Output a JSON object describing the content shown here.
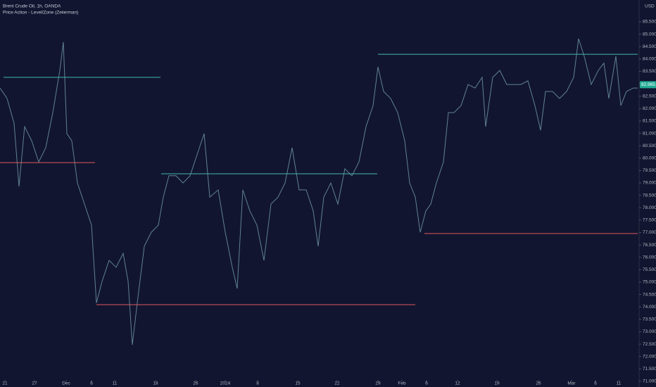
{
  "chart_data": {
    "type": "line",
    "title": "Brent Crude Oil, 1h, OANDA",
    "subtitle": "Price Action - Level/Zone (Zeiierman)",
    "currency": "USD",
    "color": "#5f8391",
    "x": [
      0,
      10,
      20,
      27,
      35,
      45,
      55,
      65,
      75,
      85,
      90,
      95,
      102,
      110,
      120,
      130,
      137,
      145,
      155,
      165,
      175,
      182,
      188,
      195,
      205,
      215,
      225,
      232,
      240,
      250,
      260,
      270,
      280,
      290,
      298,
      310,
      320,
      330,
      337,
      345,
      355,
      365,
      375,
      385,
      395,
      405,
      415,
      425,
      435,
      445,
      452,
      460,
      470,
      480,
      490,
      500,
      510,
      520,
      530,
      537,
      545,
      555,
      565,
      575,
      582,
      590,
      597,
      605,
      612,
      620,
      630,
      637,
      645,
      655,
      665,
      675,
      685,
      690,
      700,
      710,
      720,
      730,
      740,
      750,
      760,
      768,
      775,
      785,
      795,
      805,
      815,
      822,
      830,
      840,
      850,
      858,
      865,
      875,
      882,
      890,
      900,
      906
    ],
    "values": [
      82.83,
      82.41,
      81.41,
      78.86,
      81.27,
      80.7,
      79.85,
      80.42,
      81.84,
      83.54,
      84.68,
      80.99,
      80.7,
      79.0,
      78.15,
      77.3,
      74.16,
      75.03,
      75.88,
      75.6,
      76.16,
      75.03,
      72.47,
      74.16,
      76.45,
      77.01,
      77.3,
      78.43,
      79.29,
      79.29,
      79.0,
      79.29,
      80.14,
      80.99,
      78.43,
      78.72,
      77.01,
      75.6,
      74.74,
      78.72,
      77.87,
      77.3,
      75.88,
      78.15,
      78.43,
      79.0,
      80.42,
      78.72,
      78.72,
      77.87,
      76.45,
      78.43,
      79.0,
      78.15,
      79.57,
      79.29,
      79.85,
      81.27,
      82.12,
      83.68,
      82.69,
      82.41,
      81.84,
      80.7,
      79.0,
      78.43,
      77.01,
      77.87,
      78.15,
      79.0,
      79.85,
      81.84,
      81.84,
      82.12,
      82.97,
      82.83,
      83.26,
      81.27,
      83.26,
      83.54,
      82.97,
      82.97,
      82.97,
      83.12,
      82.12,
      81.13,
      82.69,
      82.69,
      82.41,
      82.69,
      83.26,
      84.82,
      84.11,
      82.97,
      83.54,
      83.83,
      82.41,
      84.11,
      82.12,
      82.69,
      82.83,
      82.83
    ],
    "levels": [
      {
        "value": 83.26,
        "start": 5,
        "end": 228,
        "color": "#3fb8b0"
      },
      {
        "value": 79.82,
        "start": 0,
        "end": 135,
        "color": "#e0575a"
      },
      {
        "value": 79.37,
        "start": 229,
        "end": 536,
        "color": "#3fb8b0"
      },
      {
        "value": 74.09,
        "start": 137,
        "end": 590,
        "color": "#e0575a"
      },
      {
        "value": 84.19,
        "start": 537,
        "end": 906,
        "color": "#3fb8b0"
      },
      {
        "value": 76.96,
        "start": 603,
        "end": 906,
        "color": "#e0575a"
      }
    ],
    "last_price": 82.965,
    "last_price_color": "#22ab94",
    "xlim": [
      0,
      908
    ],
    "ylim": [
      70.77,
      86.38
    ],
    "xticks": [
      {
        "value": 7,
        "label": "21"
      },
      {
        "value": 49,
        "label": "27"
      },
      {
        "value": 94,
        "label": "Dec"
      },
      {
        "value": 130,
        "label": "6"
      },
      {
        "value": 163,
        "label": "11"
      },
      {
        "value": 221,
        "label": "18"
      },
      {
        "value": 278,
        "label": "26"
      },
      {
        "value": 320,
        "label": "2024"
      },
      {
        "value": 366,
        "label": "8"
      },
      {
        "value": 423,
        "label": "15"
      },
      {
        "value": 479,
        "label": "22"
      },
      {
        "value": 537,
        "label": "29"
      },
      {
        "value": 571,
        "label": "Feb"
      },
      {
        "value": 606,
        "label": "6"
      },
      {
        "value": 650,
        "label": "12"
      },
      {
        "value": 706,
        "label": "19"
      },
      {
        "value": 765,
        "label": "26"
      },
      {
        "value": 812,
        "label": "Mar"
      },
      {
        "value": 846,
        "label": "6"
      },
      {
        "value": 879,
        "label": "11"
      }
    ],
    "yticks": [
      {
        "value": 71,
        "label": "71.000"
      },
      {
        "value": 71.5,
        "label": "71.500"
      },
      {
        "value": 72,
        "label": "72.000"
      },
      {
        "value": 72.5,
        "label": "72.500"
      },
      {
        "value": 73,
        "label": "73.000"
      },
      {
        "value": 73.5,
        "label": "73.500"
      },
      {
        "value": 74,
        "label": "74.000"
      },
      {
        "value": 74.5,
        "label": "74.500"
      },
      {
        "value": 75,
        "label": "75.000"
      },
      {
        "value": 75.5,
        "label": "75.500"
      },
      {
        "value": 76,
        "label": "76.000"
      },
      {
        "value": 76.5,
        "label": "76.500"
      },
      {
        "value": 77,
        "label": "77.000"
      },
      {
        "value": 77.5,
        "label": "77.500"
      },
      {
        "value": 78,
        "label": "78.000"
      },
      {
        "value": 78.5,
        "label": "78.500"
      },
      {
        "value": 79,
        "label": "79.000"
      },
      {
        "value": 79.5,
        "label": "79.500"
      },
      {
        "value": 80,
        "label": "80.000"
      },
      {
        "value": 80.5,
        "label": "80.500"
      },
      {
        "value": 81,
        "label": "81.000"
      },
      {
        "value": 81.5,
        "label": "81.500"
      },
      {
        "value": 82,
        "label": "82.000"
      },
      {
        "value": 82.5,
        "label": "82.500"
      },
      {
        "value": 83,
        "label": "83.000"
      },
      {
        "value": 83.5,
        "label": "83.500"
      },
      {
        "value": 84,
        "label": "84.000"
      },
      {
        "value": 84.5,
        "label": "84.500"
      },
      {
        "value": 85,
        "label": "85.000"
      },
      {
        "value": 85.5,
        "label": "85.500"
      }
    ]
  }
}
